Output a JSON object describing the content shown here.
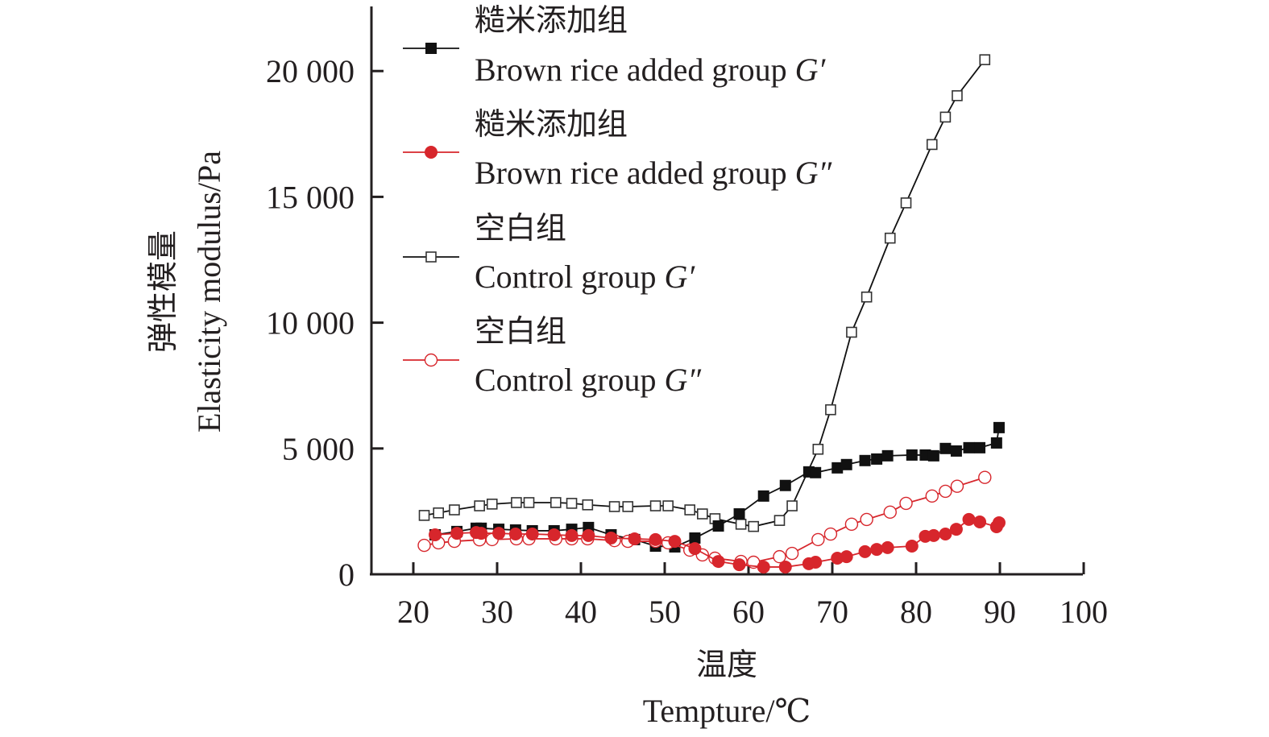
{
  "chart_data": {
    "type": "line",
    "title": "",
    "xlabel_zh": "温度",
    "xlabel": "Tempture/℃",
    "ylabel_zh": "弹性模量",
    "ylabel": "Elasticity modulus/Pa",
    "xlim": [
      15,
      100
    ],
    "ylim": [
      0,
      22500
    ],
    "x_ticks": [
      20,
      30,
      40,
      50,
      60,
      70,
      80,
      90,
      100
    ],
    "x_tick_labels": [
      "20",
      "30",
      "40",
      "50",
      "60",
      "70",
      "80",
      "90",
      "100"
    ],
    "y_ticks": [
      0,
      5000,
      10000,
      15000,
      20000
    ],
    "y_tick_labels": [
      "0",
      "5 000",
      "10 000",
      "15 000",
      "20 000"
    ],
    "grid": false,
    "legend_position": "top-left",
    "series": [
      {
        "name_zh": "糙米添加组",
        "name": "Brown rice added group",
        "symbol": "G′",
        "marker": "filled-square",
        "color": "#111111",
        "x": [
          22.6,
          25.2,
          27.5,
          28.1,
          30.2,
          32.2,
          34.2,
          36.8,
          38.9,
          40.9,
          43.6,
          46.4,
          48.9,
          51.2,
          53.6,
          56.4,
          58.9,
          61.8,
          64.4,
          67.2,
          68.0,
          70.6,
          71.7,
          73.9,
          75.3,
          76.6,
          79.5,
          81.1,
          82.1,
          83.5,
          84.8,
          86.3,
          87.6,
          89.6,
          89.9
        ],
        "y": [
          1570,
          1700,
          1830,
          1830,
          1790,
          1760,
          1730,
          1730,
          1790,
          1860,
          1570,
          1380,
          1120,
          1090,
          1440,
          1920,
          2400,
          3110,
          3530,
          4070,
          4040,
          4230,
          4360,
          4520,
          4580,
          4710,
          4740,
          4740,
          4710,
          5000,
          4900,
          5030,
          5030,
          5220,
          5830
        ]
      },
      {
        "name_zh": "糙米添加组",
        "name": "Brown rice added group",
        "symbol": "G″",
        "marker": "filled-circle",
        "color": "#d7262c",
        "x": [
          22.6,
          25.2,
          27.5,
          28.1,
          30.2,
          32.2,
          34.2,
          36.8,
          38.9,
          40.9,
          43.6,
          46.4,
          48.9,
          51.2,
          53.6,
          56.4,
          58.9,
          61.8,
          64.4,
          67.2,
          68.0,
          70.6,
          71.7,
          73.9,
          75.3,
          76.6,
          79.5,
          81.1,
          82.1,
          83.5,
          84.8,
          86.3,
          87.6,
          89.6,
          89.9
        ],
        "y": [
          1570,
          1630,
          1660,
          1630,
          1630,
          1600,
          1600,
          1570,
          1540,
          1540,
          1440,
          1410,
          1380,
          1310,
          1020,
          510,
          380,
          290,
          290,
          420,
          480,
          640,
          700,
          900,
          990,
          1060,
          1120,
          1510,
          1540,
          1600,
          1790,
          2180,
          2080,
          1890,
          2050
        ]
      },
      {
        "name_zh": "空白组",
        "name": "Control group",
        "symbol": "G′",
        "marker": "open-square",
        "color": "#111111",
        "x": [
          21.3,
          23.0,
          24.9,
          27.9,
          29.4,
          32.3,
          33.8,
          37.0,
          38.9,
          40.8,
          44.0,
          45.6,
          48.9,
          50.4,
          53.0,
          54.5,
          56.0,
          59.1,
          60.6,
          63.7,
          65.2,
          68.3,
          69.8,
          72.3,
          74.1,
          76.9,
          78.8,
          81.9,
          83.5,
          84.9,
          88.2
        ],
        "y": [
          2340,
          2440,
          2560,
          2720,
          2790,
          2850,
          2850,
          2850,
          2820,
          2760,
          2690,
          2690,
          2720,
          2720,
          2560,
          2400,
          2210,
          1990,
          1900,
          2140,
          2720,
          4970,
          6540,
          9620,
          11020,
          13360,
          14760,
          17080,
          18170,
          19020,
          20450
        ]
      },
      {
        "name_zh": "空白组",
        "name": "Control group",
        "symbol": "G″",
        "marker": "open-circle",
        "color": "#d7262c",
        "x": [
          21.3,
          23.0,
          24.9,
          27.9,
          29.4,
          32.3,
          33.8,
          37.0,
          38.9,
          40.8,
          44.0,
          45.6,
          48.9,
          50.4,
          53.0,
          54.5,
          56.0,
          59.1,
          60.6,
          63.7,
          65.2,
          68.3,
          69.8,
          72.3,
          74.1,
          76.9,
          78.8,
          81.9,
          83.5,
          84.9,
          88.2
        ],
        "y": [
          1150,
          1250,
          1310,
          1370,
          1380,
          1410,
          1410,
          1410,
          1410,
          1410,
          1340,
          1310,
          1310,
          1250,
          960,
          770,
          640,
          510,
          480,
          700,
          830,
          1380,
          1600,
          1990,
          2180,
          2470,
          2820,
          3110,
          3300,
          3500,
          3850
        ]
      }
    ]
  }
}
